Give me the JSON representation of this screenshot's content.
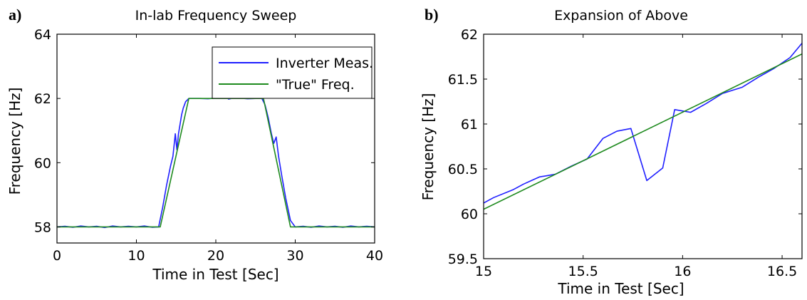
{
  "chart_data": [
    {
      "panel_label": "a)",
      "type": "line",
      "title": "In-lab Frequency Sweep",
      "xlabel": "Time in Test [Sec]",
      "ylabel": "Frequency [Hz]",
      "xlim": [
        0,
        40
      ],
      "ylim": [
        57.5,
        64
      ],
      "xticks": [
        0,
        10,
        20,
        30,
        40
      ],
      "xtick_labels": [
        "0",
        "10",
        "20",
        "30",
        "40"
      ],
      "yticks": [
        58,
        60,
        62,
        64
      ],
      "ytick_labels": [
        "58",
        "60",
        "62",
        "64"
      ],
      "grid": false,
      "legend": {
        "placement": "top-right",
        "entries": [
          "Inverter Meas.",
          "\"True\" Freq."
        ]
      },
      "series": [
        {
          "name": "Inverter Meas.",
          "color": "#1f1fff",
          "x": [
            0,
            1,
            2,
            3,
            4,
            5,
            6,
            7,
            8,
            9,
            10,
            11,
            12,
            12.8,
            13.3,
            13.8,
            14.3,
            14.6,
            14.9,
            15.1,
            15.3,
            15.5,
            15.7,
            15.9,
            16.2,
            16.6,
            17,
            18,
            19,
            20,
            21,
            21.3,
            21.6,
            22,
            23,
            24,
            25,
            25.8,
            26.2,
            26.6,
            27.0,
            27.3,
            27.6,
            27.9,
            28.3,
            28.8,
            29.4,
            30,
            31,
            32,
            33,
            34,
            35,
            36,
            37,
            38,
            39,
            40
          ],
          "y": [
            58.0,
            58.02,
            57.99,
            58.03,
            58.0,
            58.02,
            57.98,
            58.03,
            58.0,
            58.02,
            58.0,
            58.03,
            57.99,
            58.0,
            58.6,
            59.3,
            59.9,
            60.2,
            60.9,
            60.4,
            60.9,
            61.2,
            61.5,
            61.7,
            61.9,
            62.0,
            62.0,
            62.0,
            61.99,
            62.01,
            62.0,
            62.05,
            61.98,
            62.0,
            62.01,
            61.99,
            62.0,
            62.0,
            61.8,
            61.4,
            60.9,
            60.6,
            60.8,
            60.2,
            59.6,
            58.9,
            58.2,
            58.0,
            58.02,
            57.99,
            58.03,
            58.0,
            58.02,
            57.99,
            58.03,
            58.0,
            58.02,
            58.0
          ]
        },
        {
          "name": "\"True\" Freq.",
          "color": "#1e8a1e",
          "x": [
            0,
            13,
            16.6,
            26,
            29.4,
            40
          ],
          "y": [
            58.0,
            58.0,
            62.0,
            62.0,
            58.0,
            58.0
          ]
        }
      ]
    },
    {
      "panel_label": "b)",
      "type": "line",
      "title": "Expansion of Above",
      "xlabel": "Time in Test [Sec]",
      "ylabel": "Frequency [Hz]",
      "xlim": [
        15,
        16.6
      ],
      "ylim": [
        59.5,
        62
      ],
      "xticks": [
        15,
        15.5,
        16,
        16.5
      ],
      "xtick_labels": [
        "15",
        "15.5",
        "16",
        "16.5"
      ],
      "yticks": [
        59.5,
        60,
        60.5,
        61,
        61.5,
        62
      ],
      "ytick_labels": [
        "59.5",
        "60",
        "60.5",
        "61",
        "61.5",
        "62"
      ],
      "grid": false,
      "series": [
        {
          "name": "Inverter Meas.",
          "color": "#1f1fff",
          "x": [
            15.0,
            15.05,
            15.15,
            15.2,
            15.28,
            15.36,
            15.44,
            15.52,
            15.6,
            15.67,
            15.74,
            15.82,
            15.9,
            15.96,
            16.04,
            16.12,
            16.2,
            16.3,
            16.38,
            16.46,
            16.54,
            16.6
          ],
          "y": [
            60.12,
            60.18,
            60.27,
            60.33,
            60.41,
            60.44,
            60.53,
            60.61,
            60.84,
            60.92,
            60.95,
            60.37,
            60.51,
            61.16,
            61.13,
            61.23,
            61.34,
            61.41,
            61.52,
            61.62,
            61.74,
            61.9
          ]
        },
        {
          "name": "\"True\" Freq.",
          "color": "#1e8a1e",
          "x": [
            15.0,
            16.6
          ],
          "y": [
            60.05,
            61.78
          ]
        }
      ]
    }
  ]
}
